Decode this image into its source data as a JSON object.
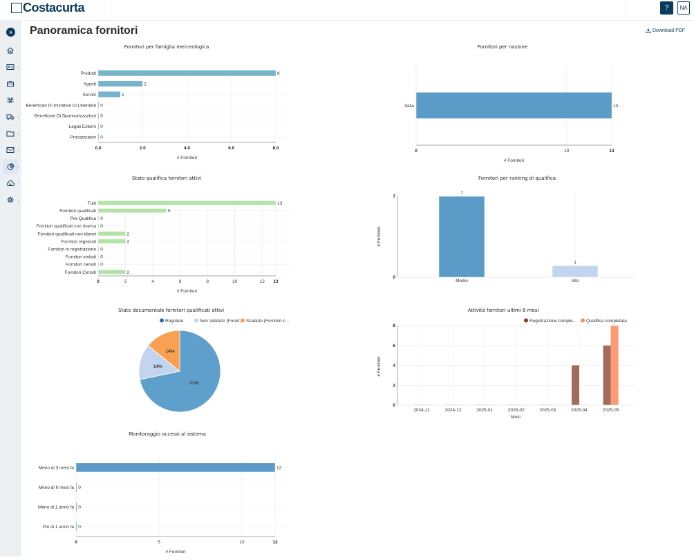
{
  "app": {
    "brand": "Costacurta",
    "help_label": "?",
    "user_initials": "NA"
  },
  "sidebar": {
    "items": [
      {
        "icon": "expand-icon",
        "glyph": "»"
      },
      {
        "icon": "home-icon"
      },
      {
        "icon": "id-card-icon",
        "has_submenu": true
      },
      {
        "icon": "briefcase-icon"
      },
      {
        "icon": "users-icon"
      },
      {
        "icon": "truck-icon",
        "has_submenu": true
      },
      {
        "icon": "folder-icon",
        "has_submenu": true
      },
      {
        "icon": "mail-icon",
        "has_submenu": true
      },
      {
        "icon": "chart-pie-icon",
        "has_submenu": true,
        "active": true
      },
      {
        "icon": "cloud-download-icon",
        "has_submenu": true
      },
      {
        "icon": "gear-icon",
        "has_submenu": true
      }
    ]
  },
  "header": {
    "title": "Panoramica fornitori",
    "download_label": "Download PDF"
  },
  "colors": {
    "brand": "#0b3a5c",
    "teal_bar": "#78b4c9",
    "blue_bar": "#5a9bc8",
    "light_blue_bar": "#c3d5ee",
    "green_bar": "#b3e3a7",
    "orange": "#f9a152",
    "dark_red": "#a36a5e",
    "salmon": "#fd9b73"
  },
  "chart_data": [
    {
      "id": "famiglia",
      "type": "bar",
      "orientation": "horizontal",
      "title": "Fornitori per famiglia merceologica",
      "categories": [
        "Prodotti",
        "Agenti",
        "Servizi",
        "Beneficiari Di Iniziative Di Liberalità",
        "Beneficiari Di Sponsorizzazioni",
        "Legali Esterni",
        "Procacciatori"
      ],
      "values": [
        8,
        2,
        1,
        0,
        0,
        0,
        0
      ],
      "xlabel": "# Fornitori",
      "xlim": [
        0,
        8
      ],
      "xticks": [
        "0.0",
        "2.0",
        "4.0",
        "6.0",
        "8.0"
      ],
      "grid": true
    },
    {
      "id": "nazione",
      "type": "bar",
      "orientation": "horizontal",
      "title": "Fornitori per nazione",
      "categories": [
        "Italia"
      ],
      "values": [
        13
      ],
      "xlabel": "# Fornitori",
      "xlim": [
        0,
        13
      ],
      "xticks": [
        "0",
        "10",
        "13"
      ],
      "grid": true
    },
    {
      "id": "qualifica",
      "type": "bar",
      "orientation": "horizontal",
      "title": "Stato qualifica fornitori attivi",
      "categories": [
        "Tutti",
        "Fornitori qualificati",
        "Pre-Qualifica",
        "Fornitori qualificati con riserva",
        "Fornitori qualificati non idonei",
        "Fornitori registrati",
        "Fornitori in registrazione",
        "Fornitori invitati",
        "Fornitori censiti",
        "Fornitori Censiti"
      ],
      "values": [
        13,
        5,
        0,
        0,
        2,
        2,
        0,
        0,
        0,
        2
      ],
      "xlabel": "# Fornitori",
      "xlim": [
        0,
        13
      ],
      "xticks": [
        "0",
        "2",
        "4",
        "6",
        "8",
        "10",
        "12",
        "13"
      ],
      "grid": true
    },
    {
      "id": "ranking",
      "type": "bar",
      "orientation": "vertical",
      "title": "Fornitori per ranking di qualifica",
      "categories": [
        "Medio",
        "Alto"
      ],
      "values": [
        7,
        1
      ],
      "ylabel": "# Fornitori",
      "ylim": [
        0,
        7
      ],
      "yticks": [
        "0",
        "7"
      ],
      "grid": true
    },
    {
      "id": "documentale",
      "type": "pie",
      "title": "Stato documentale fornitori qualificati attivi",
      "legend": [
        "Regolare",
        "Non Validato (Fornit...",
        "Scaduto (Fornitori c..."
      ],
      "legend_position": "top-right",
      "slices": [
        {
          "label": "Regolare",
          "value": 71,
          "display": "71%"
        },
        {
          "label": "Non Validato (Fornit...",
          "value": 14,
          "display": "14%"
        },
        {
          "label": "Scaduto (Fornitori c...",
          "value": 14,
          "display": "14%"
        }
      ]
    },
    {
      "id": "attivita",
      "type": "bar",
      "orientation": "vertical",
      "title": "Attività fornitori ultimi 6 mesi",
      "categories": [
        "2024-11",
        "2024-12",
        "2025-01",
        "2025-02",
        "2025-03",
        "2025-04",
        "2025-05"
      ],
      "series": [
        {
          "name": "Registrazione comple...",
          "values": [
            0,
            0,
            0,
            0,
            0,
            4,
            6
          ]
        },
        {
          "name": "Qualifica completata",
          "values": [
            0,
            0,
            0,
            0,
            0,
            0,
            8
          ]
        }
      ],
      "xlabel": "Mesi",
      "ylabel": "# Fornitori",
      "ylim": [
        0,
        8
      ],
      "yticks": [
        "0",
        "2",
        "4",
        "6",
        "8"
      ],
      "legend_position": "top-right",
      "grid": true
    },
    {
      "id": "accessi",
      "type": "bar",
      "orientation": "horizontal",
      "title": "Monitoraggio accessi al sistema",
      "categories": [
        "Meno di 3 mesi fa",
        "Meno di 6 mesi fa",
        "Meno di 1 anno fa",
        "Più di 1 anno fa"
      ],
      "values": [
        12,
        0,
        0,
        0
      ],
      "xlabel": "# Fornitori",
      "xlim": [
        0,
        12
      ],
      "xticks": [
        "0",
        "5",
        "10",
        "12"
      ],
      "grid": true
    }
  ]
}
